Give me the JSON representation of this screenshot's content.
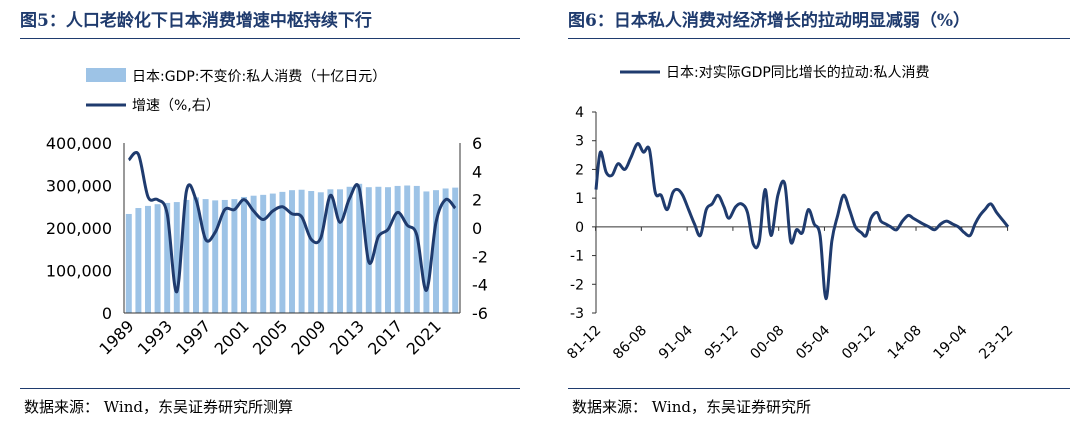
{
  "left_panel": {
    "title": "图5：人口老龄化下日本消费增速中枢持续下行",
    "source": "数据来源：  Wind，东吴证券研究所测算"
  },
  "right_panel": {
    "title": "图6：日本私人消费对经济增长的拉动明显减弱（%）",
    "source": "数据来源：  Wind，东吴证券研究所"
  },
  "colors": {
    "bar": "#9dc3e6",
    "line": "#1f3b6e",
    "rule": "#1f3b6e"
  },
  "chart_data": [
    {
      "type": "bar",
      "legend_position": "top-left",
      "grid": false,
      "x": [
        1989,
        1990,
        1991,
        1992,
        1993,
        1994,
        1995,
        1996,
        1997,
        1998,
        1999,
        2000,
        2001,
        2002,
        2003,
        2004,
        2005,
        2006,
        2007,
        2008,
        2009,
        2010,
        2011,
        2012,
        2013,
        2014,
        2015,
        2016,
        2017,
        2018,
        2019,
        2020,
        2021,
        2022,
        2023
      ],
      "x_ticks": [
        "1989",
        "1993",
        "1997",
        "2001",
        "2005",
        "2009",
        "2013",
        "2017",
        "2021"
      ],
      "ylim_left": [
        0,
        400000
      ],
      "yticks_left": [
        "0",
        "100,000",
        "200,000",
        "300,000",
        "400,000"
      ],
      "ylim_right": [
        -6,
        6
      ],
      "yticks_right": [
        "-6",
        "-4",
        "-2",
        "0",
        "2",
        "4",
        "6"
      ],
      "series": [
        {
          "name": "日本:GDP:不变价:私人消费（十亿日元）",
          "type": "bar",
          "axis": "left",
          "values": [
            233000,
            247000,
            252000,
            256000,
            259000,
            261000,
            266000,
            272000,
            268000,
            265000,
            266000,
            268000,
            273000,
            276000,
            278000,
            281000,
            285000,
            289000,
            290000,
            287000,
            284000,
            291000,
            291000,
            297000,
            304000,
            296000,
            297000,
            296000,
            299000,
            300000,
            299000,
            286000,
            289000,
            293000,
            295000
          ]
        },
        {
          "name": "增速（%,右）",
          "type": "line",
          "axis": "right",
          "values": [
            4.8,
            5.2,
            2.2,
            2.0,
            1.0,
            -4.5,
            2.6,
            2.0,
            -0.8,
            -0.3,
            1.3,
            1.3,
            2.0,
            1.2,
            0.6,
            1.2,
            1.5,
            1.0,
            0.8,
            -0.8,
            -0.7,
            2.3,
            0.4,
            2.1,
            2.8,
            -2.4,
            -0.6,
            -0.1,
            1.1,
            0.2,
            -0.5,
            -4.4,
            0.4,
            2.0,
            1.4
          ]
        }
      ]
    },
    {
      "type": "line",
      "legend_position": "top-center",
      "grid": false,
      "x_ticks": [
        "81-12",
        "86-08",
        "91-04",
        "95-12",
        "00-08",
        "05-04",
        "09-12",
        "14-08",
        "19-04",
        "23-12"
      ],
      "ylim": [
        -3,
        4
      ],
      "yticks": [
        "-3",
        "-2",
        "-1",
        "0",
        "1",
        "2",
        "3",
        "4"
      ],
      "series": [
        {
          "name": "日本:对实际GDP同比增长的拉动:私人消费",
          "x": [
            1981.96,
            1982.4,
            1983.0,
            1983.6,
            1984.2,
            1984.9,
            1985.5,
            1986.2,
            1986.8,
            1987.4,
            1988.0,
            1988.6,
            1989.2,
            1989.8,
            1990.3,
            1990.8,
            1991.4,
            1992.0,
            1992.6,
            1993.2,
            1993.8,
            1994.4,
            1995.0,
            1995.5,
            1996.2,
            1996.8,
            1997.4,
            1998.0,
            1998.6,
            1999.2,
            1999.8,
            2000.5,
            2001.2,
            2001.8,
            2002.4,
            2003.0,
            2003.6,
            2004.2,
            2004.8,
            2005.4,
            2006.0,
            2006.6,
            2007.2,
            2007.8,
            2008.4,
            2009.0,
            2009.5,
            2010.0,
            2010.6,
            2011.0,
            2011.5,
            2012.0,
            2012.6,
            2013.2,
            2013.8,
            2014.3,
            2014.8,
            2015.3,
            2015.9,
            2016.5,
            2017.1,
            2017.7,
            2018.3,
            2018.9,
            2019.5,
            2020.1,
            2020.6,
            2021.1,
            2021.6,
            2022.2,
            2022.8,
            2023.5,
            2023.96
          ],
          "y": [
            1.3,
            2.6,
            1.9,
            1.8,
            2.2,
            2.0,
            2.4,
            2.9,
            2.6,
            2.7,
            1.2,
            1.1,
            0.6,
            1.2,
            1.3,
            1.1,
            0.6,
            0.1,
            -0.3,
            0.6,
            0.8,
            1.1,
            0.7,
            0.3,
            0.7,
            0.8,
            0.5,
            -0.6,
            -0.5,
            1.3,
            -0.3,
            1.1,
            1.5,
            -0.5,
            -0.1,
            -0.2,
            0.6,
            0.1,
            -0.3,
            -2.5,
            -0.5,
            0.4,
            1.1,
            0.6,
            0.0,
            -0.2,
            -0.3,
            0.3,
            0.5,
            0.2,
            0.1,
            0.0,
            -0.1,
            0.2,
            0.4,
            0.3,
            0.2,
            0.1,
            0.0,
            -0.1,
            0.1,
            0.2,
            0.1,
            0.0,
            -0.2,
            -0.3,
            0.1,
            0.4,
            0.6,
            0.8,
            0.5,
            0.2,
            0.0
          ]
        }
      ]
    }
  ]
}
